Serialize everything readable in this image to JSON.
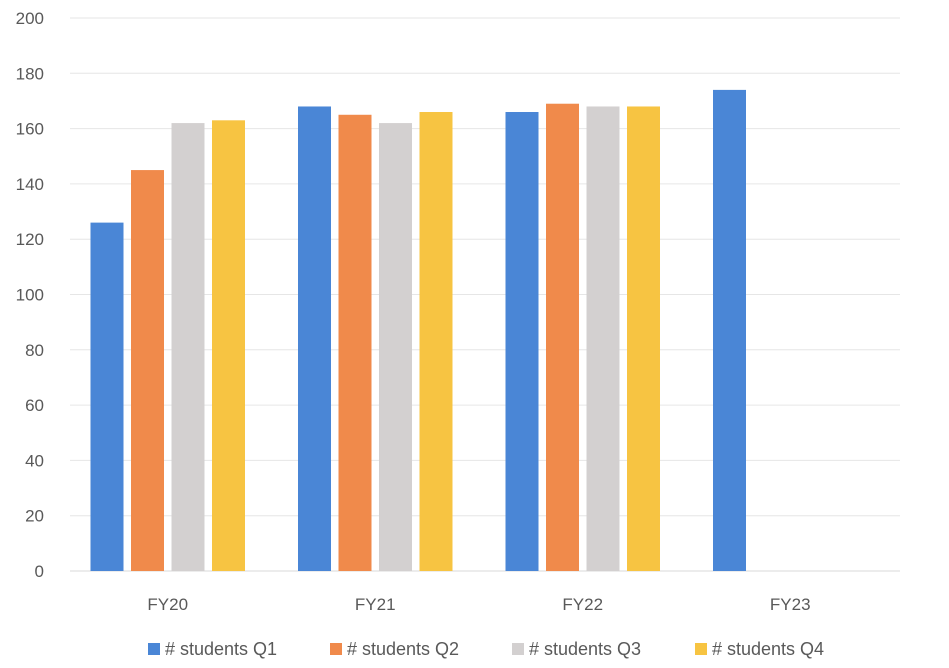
{
  "chart_data": {
    "type": "bar",
    "categories": [
      "FY20",
      "FY21",
      "FY22",
      "FY23"
    ],
    "series": [
      {
        "name": "# students Q1",
        "color": "#4a86d6",
        "values": [
          126,
          168,
          166,
          174
        ]
      },
      {
        "name": "# students Q2",
        "color": "#f08a4b",
        "values": [
          145,
          165,
          169,
          null
        ]
      },
      {
        "name": "# students Q3",
        "color": "#d3d0d0",
        "values": [
          162,
          162,
          168,
          null
        ]
      },
      {
        "name": "# students Q4",
        "color": "#f7c442",
        "values": [
          163,
          166,
          168,
          null
        ]
      }
    ],
    "title": "",
    "xlabel": "",
    "ylabel": "",
    "ylim": [
      0,
      200
    ],
    "yticks": [
      0,
      20,
      40,
      60,
      80,
      100,
      120,
      140,
      160,
      180,
      200
    ],
    "grid": true,
    "legend": "bottom"
  }
}
